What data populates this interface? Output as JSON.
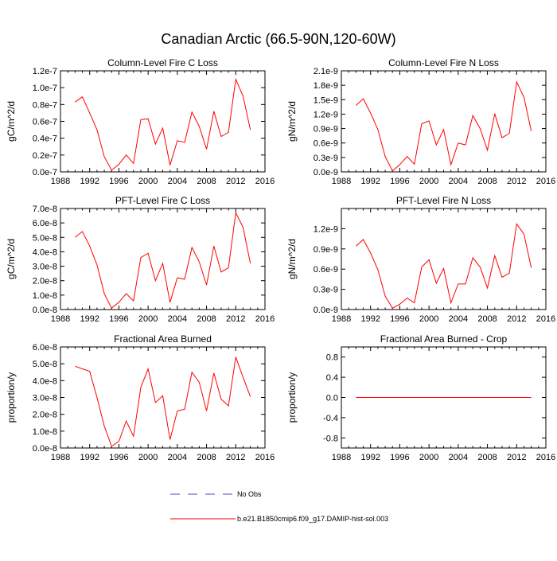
{
  "page_title": "Canadian Arctic (66.5-90N,120-60W)",
  "legend": {
    "items": [
      {
        "label": "No Obs",
        "style": "dashed",
        "color": "#4b4bb4"
      },
      {
        "label": "b.e21.B1850cmip6.f09_g17.DAMIP-hist-sol.003",
        "style": "solid",
        "color": "#ff0000"
      }
    ]
  },
  "line_color": "#ff0000",
  "chart_data": [
    {
      "type": "line",
      "title": "Column-Level Fire C Loss",
      "xlabel": "",
      "ylabel": "gC/m^2/d",
      "xlim": [
        1988,
        2016
      ],
      "xticks": [
        1988,
        1992,
        1996,
        2000,
        2004,
        2008,
        2012,
        2016
      ],
      "ylim": [
        0,
        1.2e-07
      ],
      "yticks": [
        0,
        2e-08,
        4e-08,
        6e-08,
        8e-08,
        1e-07,
        1.2e-07
      ],
      "ytick_labels": [
        "0.0e-7",
        "0.2e-7",
        "0.4e-7",
        "0.6e-7",
        "0.8e-7",
        "1.0e-7",
        "1.2e-7"
      ],
      "x": [
        1990,
        1991,
        1992,
        1993,
        1994,
        1995,
        1996,
        1997,
        1998,
        1999,
        2000,
        2001,
        2002,
        2003,
        2004,
        2005,
        2006,
        2007,
        2008,
        2009,
        2010,
        2011,
        2012,
        2013,
        2014
      ],
      "values": [
        8.3e-08,
        8.9e-08,
        7e-08,
        5e-08,
        1.8e-08,
        2e-09,
        9e-09,
        2e-08,
        1e-08,
        6.2e-08,
        6.3e-08,
        3.3e-08,
        5.2e-08,
        8e-09,
        3.7e-08,
        3.5e-08,
        7.1e-08,
        5.4e-08,
        2.7e-08,
        7.2e-08,
        4.2e-08,
        4.7e-08,
        1.1e-07,
        9e-08,
        5e-08
      ]
    },
    {
      "type": "line",
      "title": "Column-Level Fire N Loss",
      "xlabel": "",
      "ylabel": "gN/m^2/d",
      "xlim": [
        1988,
        2016
      ],
      "xticks": [
        1988,
        1992,
        1996,
        2000,
        2004,
        2008,
        2012,
        2016
      ],
      "ylim": [
        0,
        2.1e-09
      ],
      "yticks": [
        0,
        3e-10,
        6e-10,
        9e-10,
        1.2e-09,
        1.5e-09,
        1.8e-09,
        2.1e-09
      ],
      "ytick_labels": [
        "0.0e-9",
        "0.3e-9",
        "0.6e-9",
        "0.9e-9",
        "1.2e-9",
        "1.5e-9",
        "1.8e-9",
        "2.1e-9"
      ],
      "x": [
        1990,
        1991,
        1992,
        1993,
        1994,
        1995,
        1996,
        1997,
        1998,
        1999,
        2000,
        2001,
        2002,
        2003,
        2004,
        2005,
        2006,
        2007,
        2008,
        2009,
        2010,
        2011,
        2012,
        2013,
        2014
      ],
      "values": [
        1.38e-09,
        1.52e-09,
        1.22e-09,
        8.8e-10,
        3.2e-10,
        2e-11,
        1.5e-10,
        3.2e-10,
        1.6e-10,
        1e-09,
        1.06e-09,
        5.6e-10,
        8.8e-10,
        1.5e-10,
        6e-10,
        5.6e-10,
        1.17e-09,
        9e-10,
        4.5e-10,
        1.21e-09,
        7.1e-10,
        8e-10,
        1.87e-09,
        1.55e-09,
        8.5e-10
      ]
    },
    {
      "type": "line",
      "title": "PFT-Level Fire C Loss",
      "xlabel": "",
      "ylabel": "gC/m^2/d",
      "xlim": [
        1988,
        2016
      ],
      "xticks": [
        1988,
        1992,
        1996,
        2000,
        2004,
        2008,
        2012,
        2016
      ],
      "ylim": [
        0,
        7e-08
      ],
      "yticks": [
        0,
        1e-08,
        2e-08,
        3e-08,
        4e-08,
        5e-08,
        6e-08,
        7e-08
      ],
      "ytick_labels": [
        "0.0e-8",
        "1.0e-8",
        "2.0e-8",
        "3.0e-8",
        "4.0e-8",
        "5.0e-8",
        "6.0e-8",
        "7.0e-8"
      ],
      "x": [
        1990,
        1991,
        1992,
        1993,
        1994,
        1995,
        1996,
        1997,
        1998,
        1999,
        2000,
        2001,
        2002,
        2003,
        2004,
        2005,
        2006,
        2007,
        2008,
        2009,
        2010,
        2011,
        2012,
        2013,
        2014
      ],
      "values": [
        5e-08,
        5.4e-08,
        4.4e-08,
        3.1e-08,
        1.1e-08,
        1e-09,
        5e-09,
        1.1e-08,
        6e-09,
        3.6e-08,
        3.9e-08,
        2e-08,
        3.2e-08,
        5e-09,
        2.2e-08,
        2.1e-08,
        4.3e-08,
        3.3e-08,
        1.7e-08,
        4.4e-08,
        2.6e-08,
        2.9e-08,
        6.7e-08,
        5.7e-08,
        3.2e-08
      ]
    },
    {
      "type": "line",
      "title": "PFT-Level Fire N Loss",
      "xlabel": "",
      "ylabel": "gN/m^2/d",
      "xlim": [
        1988,
        2016
      ],
      "xticks": [
        1988,
        1992,
        1996,
        2000,
        2004,
        2008,
        2012,
        2016
      ],
      "ylim": [
        0,
        1.5e-09
      ],
      "yticks": [
        0,
        3e-10,
        6e-10,
        9e-10,
        1.2e-09
      ],
      "ytick_labels": [
        "0.0e-9",
        "0.3e-9",
        "0.6e-9",
        "0.9e-9",
        "1.2e-9"
      ],
      "x": [
        1990,
        1991,
        1992,
        1993,
        1994,
        1995,
        1996,
        1997,
        1998,
        1999,
        2000,
        2001,
        2002,
        2003,
        2004,
        2005,
        2006,
        2007,
        2008,
        2009,
        2010,
        2011,
        2012,
        2013,
        2014
      ],
      "values": [
        9.4e-10,
        1.04e-09,
        8.4e-10,
        5.9e-10,
        2e-10,
        2e-11,
        8e-11,
        1.7e-10,
        1e-10,
        6.3e-10,
        7.4e-10,
        3.9e-10,
        6.1e-10,
        1e-10,
        3.8e-10,
        3.8e-10,
        7.7e-10,
        6.3e-10,
        3.2e-10,
        8e-10,
        4.8e-10,
        5.4e-10,
        1.27e-09,
        1.12e-09,
        6.2e-10
      ]
    },
    {
      "type": "line",
      "title": "Fractional Area Burned",
      "xlabel": "",
      "ylabel": "proportion/y",
      "xlim": [
        1988,
        2016
      ],
      "xticks": [
        1988,
        1992,
        1996,
        2000,
        2004,
        2008,
        2012,
        2016
      ],
      "ylim": [
        0,
        6e-08
      ],
      "yticks": [
        0,
        1e-08,
        2e-08,
        3e-08,
        4e-08,
        5e-08,
        6e-08
      ],
      "ytick_labels": [
        "0.0e-8",
        "1.0e-8",
        "2.0e-8",
        "3.0e-8",
        "4.0e-8",
        "5.0e-8",
        "6.0e-8"
      ],
      "x": [
        1990,
        1991,
        1992,
        1993,
        1994,
        1995,
        1996,
        1997,
        1998,
        1999,
        2000,
        2001,
        2002,
        2003,
        2004,
        2005,
        2006,
        2007,
        2008,
        2009,
        2010,
        2011,
        2012,
        2013,
        2014
      ],
      "values": [
        4.85e-08,
        4.7e-08,
        4.55e-08,
        3e-08,
        1.3e-08,
        1e-09,
        4e-09,
        1.6e-08,
        7e-09,
        3.6e-08,
        4.7e-08,
        2.7e-08,
        3.1e-08,
        5e-09,
        2.2e-08,
        2.3e-08,
        4.5e-08,
        3.9e-08,
        2.2e-08,
        4.45e-08,
        2.9e-08,
        2.5e-08,
        5.4e-08,
        4.2e-08,
        3.05e-08
      ]
    },
    {
      "type": "line",
      "title": "Fractional Area Burned - Crop",
      "xlabel": "",
      "ylabel": "proportion/y",
      "xlim": [
        1988,
        2016
      ],
      "xticks": [
        1988,
        1992,
        1996,
        2000,
        2004,
        2008,
        2012,
        2016
      ],
      "ylim": [
        -1,
        1
      ],
      "yticks": [
        -0.8,
        -0.4,
        0,
        0.4,
        0.8
      ],
      "ytick_labels": [
        "-0.8",
        "-0.4",
        "0.0",
        "0.4",
        "0.8"
      ],
      "x": [
        1990,
        1991,
        1992,
        1993,
        1994,
        1995,
        1996,
        1997,
        1998,
        1999,
        2000,
        2001,
        2002,
        2003,
        2004,
        2005,
        2006,
        2007,
        2008,
        2009,
        2010,
        2011,
        2012,
        2013,
        2014
      ],
      "values": [
        0,
        0,
        0,
        0,
        0,
        0,
        0,
        0,
        0,
        0,
        0,
        0,
        0,
        0,
        0,
        0,
        0,
        0,
        0,
        0,
        0,
        0,
        0,
        0,
        0
      ]
    }
  ]
}
